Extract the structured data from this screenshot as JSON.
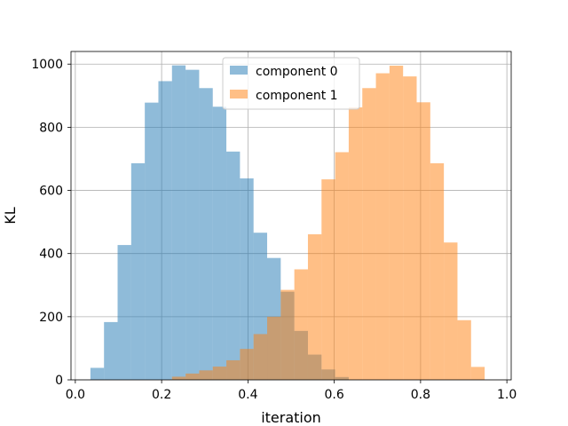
{
  "chart_data": {
    "type": "bar",
    "xlabel": "iteration",
    "ylabel": "KL",
    "xlim": [
      -0.01,
      1.01
    ],
    "ylim": [
      0,
      1040
    ],
    "xticks": [
      0.0,
      0.2,
      0.4,
      0.6,
      0.8,
      1.0
    ],
    "xtick_labels": [
      "0.0",
      "0.2",
      "0.4",
      "0.6",
      "0.8",
      "1.0"
    ],
    "yticks": [
      0,
      200,
      400,
      600,
      800,
      1000
    ],
    "ytick_labels": [
      "0",
      "200",
      "400",
      "600",
      "800",
      "1000"
    ],
    "grid": true,
    "legend_position": "top-center",
    "series": [
      {
        "name": "component 0",
        "color": "#1f77b4",
        "opacity": 0.5,
        "bin_width": 0.0315,
        "bin_starts": [
          0.035,
          0.0665,
          0.098,
          0.1295,
          0.161,
          0.1925,
          0.224,
          0.2555,
          0.287,
          0.3185,
          0.35,
          0.3815,
          0.413,
          0.4445,
          0.476,
          0.5075,
          0.539,
          0.5705,
          0.602
        ],
        "values": [
          38,
          183,
          427,
          686,
          878,
          946,
          996,
          982,
          924,
          865,
          723,
          638,
          466,
          386,
          279,
          155,
          80,
          33,
          9
        ]
      },
      {
        "name": "component 1",
        "color": "#ff7f0e",
        "opacity": 0.5,
        "bin_width": 0.0315,
        "bin_starts": [
          0.224,
          0.2555,
          0.287,
          0.3185,
          0.35,
          0.3815,
          0.413,
          0.4445,
          0.476,
          0.5075,
          0.539,
          0.5705,
          0.602,
          0.6335,
          0.665,
          0.6965,
          0.728,
          0.7595,
          0.791,
          0.8225,
          0.854,
          0.8855,
          0.917
        ],
        "values": [
          10,
          20,
          30,
          42,
          62,
          98,
          145,
          200,
          285,
          350,
          461,
          635,
          721,
          863,
          924,
          971,
          995,
          961,
          879,
          686,
          435,
          189,
          41
        ]
      }
    ]
  }
}
